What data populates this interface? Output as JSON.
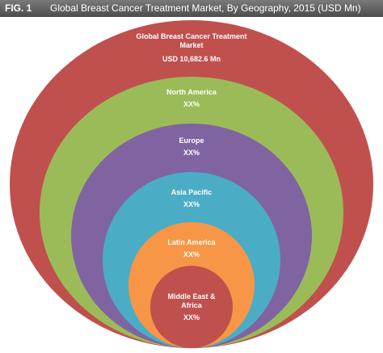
{
  "header": {
    "figure": "FIG. 1",
    "title": "Global Breast Cancer Treatment Market, By Geography, 2015 (USD Mn)"
  },
  "nodes": [
    {
      "label": "Global Breast Cancer Treatment Market",
      "value": "USD 10,682.6 Mn"
    },
    {
      "label": "North America",
      "value": "XX%"
    },
    {
      "label": "Europe",
      "value": "XX%"
    },
    {
      "label": "Asia Pacific",
      "value": "XX%"
    },
    {
      "label": "Latin America",
      "value": "XX%"
    },
    {
      "label": "Middle East & Africa",
      "value": "XX%"
    }
  ]
}
